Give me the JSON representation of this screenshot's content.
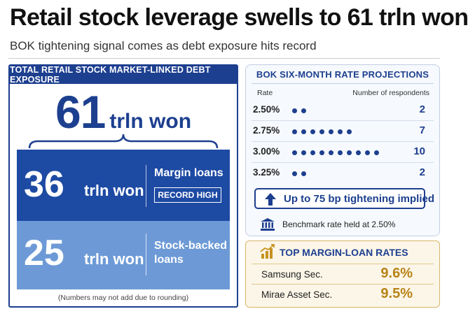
{
  "header": {
    "title": "Retail stock leverage swells to 61 trln won",
    "subtitle": "BOK tightening signal comes as debt exposure hits record"
  },
  "debt_panel": {
    "heading": "TOTAL RETAIL STOCK MARKET-LINKED DEBT EXPOSURE",
    "total_value": "61",
    "total_unit": "trln won",
    "margin": {
      "value": "36",
      "unit": "trln won",
      "label_line1": "Margin loans",
      "badge": "RECORD HIGH"
    },
    "stock_backed": {
      "value": "25",
      "unit": "trln won",
      "label_line1": "Stock-backed",
      "label_line2": "loans"
    },
    "footnote": "(Numbers may not add due to rounding)"
  },
  "projections": {
    "heading": "BOK SIX-MONTH RATE PROJECTIONS",
    "col_rate": "Rate",
    "col_respondents": "Number of respondents",
    "rows": [
      {
        "rate": "2.50%",
        "count": 2
      },
      {
        "rate": "2.75%",
        "count": 7
      },
      {
        "rate": "3.00%",
        "count": 10
      },
      {
        "rate": "3.25%",
        "count": 2
      }
    ],
    "tightening": "Up to 75 bp tightening implied",
    "benchmark": "Benchmark rate held at 2.50%"
  },
  "margin_rates": {
    "heading": "TOP MARGIN-LOAN RATES",
    "rows": [
      {
        "name": "Samsung Sec.",
        "rate": "9.6%"
      },
      {
        "name": "Mirae Asset Sec.",
        "rate": "9.5%"
      }
    ]
  },
  "colors": {
    "navy": "#1d3f8f",
    "dark_blue": "#1d4aa3",
    "light_blue": "#6d9ad6",
    "gold": "#b88317"
  },
  "icons": {
    "arrow": "up-arrow-icon",
    "bank": "bank-icon",
    "chart": "bar-chart-icon"
  }
}
